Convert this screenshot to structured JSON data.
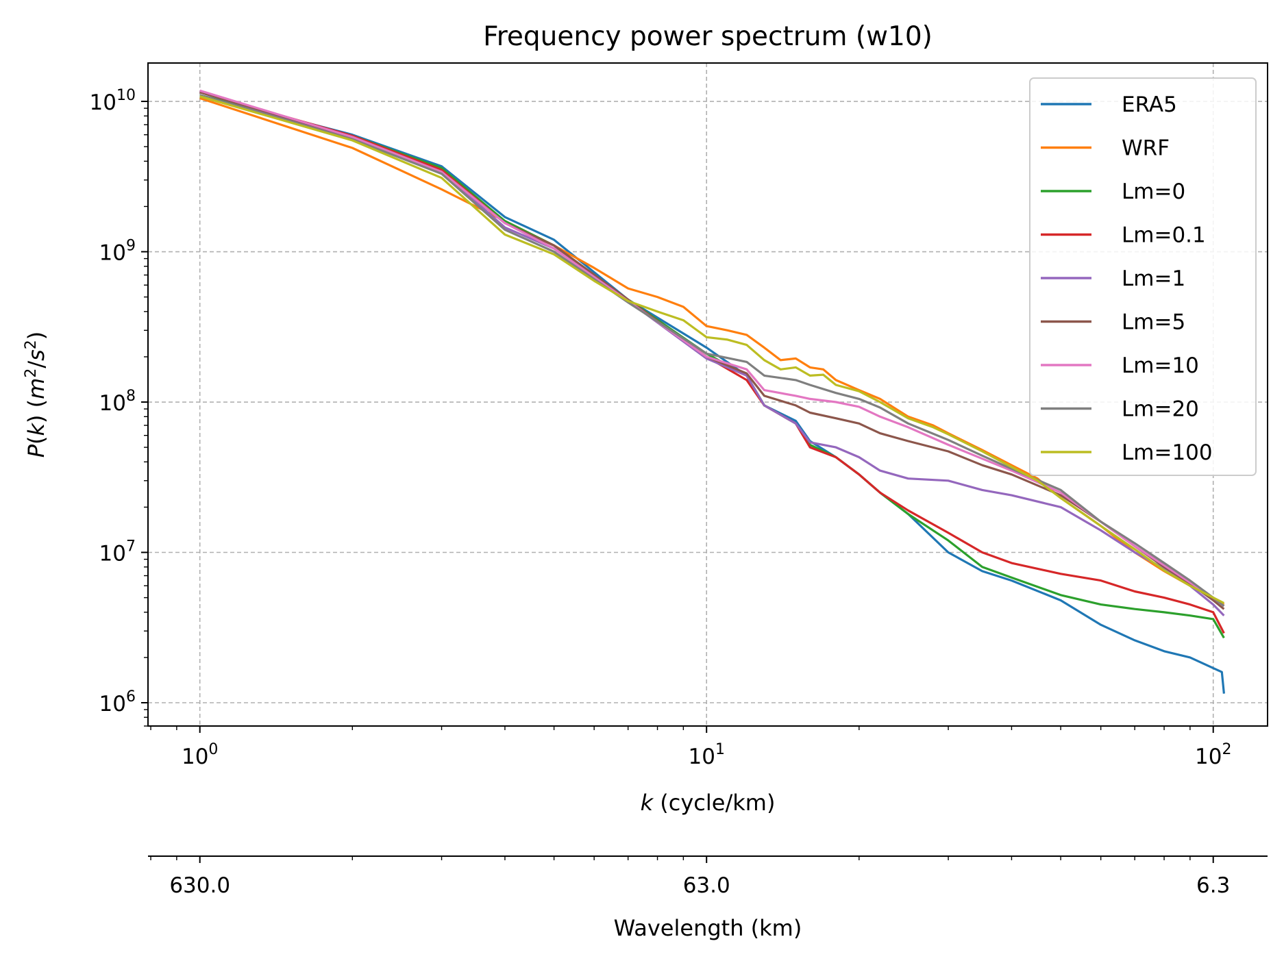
{
  "chart_data": {
    "type": "line",
    "title": "Frequency power spectrum (w10)",
    "xlabel": "k (cycle/km)",
    "ylabel": "P(k) (m²/s²)",
    "secondary_xlabel": "Wavelength (km)",
    "x_scale": "log",
    "y_scale": "log",
    "xlim": [
      0.79,
      128
    ],
    "ylim": [
      700000,
      18000000000
    ],
    "x_ticks": [
      {
        "value": 1,
        "base": "10",
        "exp": "0"
      },
      {
        "value": 10,
        "base": "10",
        "exp": "1"
      },
      {
        "value": 100,
        "base": "10",
        "exp": "2"
      }
    ],
    "y_ticks": [
      {
        "value": 1000000,
        "base": "10",
        "exp": "6"
      },
      {
        "value": 10000000,
        "base": "10",
        "exp": "7"
      },
      {
        "value": 100000000,
        "base": "10",
        "exp": "8"
      },
      {
        "value": 1000000000,
        "base": "10",
        "exp": "9"
      },
      {
        "value": 10000000000,
        "base": "10",
        "exp": "10"
      }
    ],
    "secondary_x_ticks": [
      {
        "k": 1,
        "label": "630.0"
      },
      {
        "k": 10,
        "label": "63.0"
      },
      {
        "k": 100,
        "label": "6.3"
      }
    ],
    "grid": true,
    "legend_position": "top-right",
    "series": [
      {
        "name": "ERA5",
        "color": "#1f77b4",
        "x": [
          1,
          2,
          3,
          4,
          5,
          7,
          10,
          12,
          13,
          15,
          16,
          18,
          20,
          22,
          25,
          30,
          35,
          40,
          50,
          60,
          70,
          80,
          90,
          100,
          104,
          105
        ],
        "y": [
          11000000000,
          6000000000,
          3700000000,
          1700000000,
          1200000000,
          480000000,
          230000000,
          150000000,
          95000000,
          75000000,
          55000000,
          43000000,
          33000000,
          25000000,
          18000000,
          10000000,
          7500000,
          6500000,
          4800000,
          3300000,
          2600000,
          2200000,
          2000000,
          1700000,
          1600000,
          1150000
        ]
      },
      {
        "name": "WRF",
        "color": "#ff7f0e",
        "x": [
          1,
          2,
          3,
          4,
          5,
          6,
          7,
          8,
          9,
          10,
          11,
          12,
          13,
          14,
          15,
          16,
          17,
          18,
          20,
          22,
          25,
          28,
          30,
          35,
          40,
          45,
          50,
          60,
          70,
          80,
          90,
          100,
          105
        ],
        "y": [
          10500000000,
          4900000000,
          2600000000,
          1600000000,
          1100000000,
          780000000,
          570000000,
          500000000,
          430000000,
          320000000,
          300000000,
          280000000,
          230000000,
          190000000,
          195000000,
          170000000,
          165000000,
          140000000,
          120000000,
          105000000,
          80000000,
          70000000,
          62000000,
          48000000,
          38000000,
          31000000,
          23000000,
          15000000,
          10000000,
          7500000,
          6000000,
          5000000,
          4500000
        ]
      },
      {
        "name": "Lm=0",
        "color": "#2ca02c",
        "x": [
          1,
          2,
          3,
          4,
          5,
          7,
          10,
          12,
          13,
          15,
          16,
          18,
          20,
          22,
          25,
          30,
          35,
          40,
          50,
          60,
          70,
          80,
          90,
          100,
          105
        ],
        "y": [
          11000000000,
          5900000000,
          3600000000,
          1600000000,
          1100000000,
          480000000,
          210000000,
          150000000,
          95000000,
          72000000,
          52000000,
          43000000,
          33000000,
          25000000,
          18000000,
          12000000,
          8000000,
          6800000,
          5200000,
          4500000,
          4200000,
          4000000,
          3800000,
          3600000,
          2700000
        ]
      },
      {
        "name": "Lm=0.1",
        "color": "#d62728",
        "x": [
          1,
          2,
          3,
          4,
          5,
          7,
          10,
          12,
          13,
          15,
          16,
          18,
          20,
          22,
          25,
          30,
          35,
          40,
          50,
          60,
          70,
          80,
          90,
          100,
          105
        ],
        "y": [
          11500000000,
          5900000000,
          3500000000,
          1550000000,
          1100000000,
          480000000,
          200000000,
          140000000,
          95000000,
          72000000,
          50000000,
          43000000,
          33000000,
          25000000,
          19000000,
          13500000,
          10000000,
          8500000,
          7200000,
          6500000,
          5500000,
          5000000,
          4500000,
          4000000,
          2900000
        ]
      },
      {
        "name": "Lm=1",
        "color": "#9467bd",
        "x": [
          1,
          2,
          3,
          4,
          5,
          7,
          10,
          12,
          13,
          15,
          16,
          18,
          20,
          22,
          25,
          30,
          35,
          40,
          50,
          60,
          70,
          80,
          90,
          100,
          105
        ],
        "y": [
          11500000000,
          5700000000,
          3400000000,
          1450000000,
          1050000000,
          470000000,
          195000000,
          150000000,
          95000000,
          72000000,
          54000000,
          50000000,
          43000000,
          35000000,
          31000000,
          30000000,
          26000000,
          24000000,
          20000000,
          14000000,
          10000000,
          7800000,
          6000000,
          4500000,
          3800000
        ]
      },
      {
        "name": "Lm=5",
        "color": "#8c564b",
        "x": [
          1,
          2,
          3,
          4,
          5,
          7,
          10,
          12,
          13,
          15,
          16,
          18,
          20,
          22,
          25,
          30,
          35,
          40,
          50,
          60,
          70,
          80,
          90,
          100,
          105
        ],
        "y": [
          11500000000,
          5800000000,
          3400000000,
          1550000000,
          1100000000,
          480000000,
          200000000,
          155000000,
          110000000,
          95000000,
          85000000,
          78000000,
          72000000,
          62000000,
          55000000,
          47000000,
          38000000,
          33000000,
          24000000,
          16000000,
          11000000,
          8000000,
          6200000,
          4800000,
          4200000
        ]
      },
      {
        "name": "Lm=10",
        "color": "#e377c2",
        "x": [
          1,
          2,
          3,
          4,
          5,
          7,
          10,
          12,
          13,
          15,
          16,
          18,
          20,
          22,
          25,
          30,
          35,
          40,
          50,
          60,
          70,
          80,
          90,
          100,
          105
        ],
        "y": [
          11800000000,
          5800000000,
          3400000000,
          1550000000,
          1050000000,
          470000000,
          200000000,
          165000000,
          120000000,
          110000000,
          105000000,
          100000000,
          93000000,
          80000000,
          68000000,
          52000000,
          42000000,
          35000000,
          25000000,
          16000000,
          11000000,
          8200000,
          6300000,
          5000000,
          4400000
        ]
      },
      {
        "name": "Lm=20",
        "color": "#7f7f7f",
        "x": [
          1,
          2,
          3,
          4,
          5,
          7,
          10,
          12,
          13,
          15,
          16,
          18,
          20,
          22,
          25,
          30,
          35,
          40,
          50,
          60,
          70,
          80,
          90,
          100,
          105
        ],
        "y": [
          11000000000,
          5600000000,
          3300000000,
          1400000000,
          1000000000,
          460000000,
          210000000,
          185000000,
          150000000,
          140000000,
          130000000,
          115000000,
          105000000,
          92000000,
          72000000,
          56000000,
          44000000,
          36000000,
          26000000,
          16000000,
          11500000,
          8500000,
          6500000,
          5000000,
          4400000
        ]
      },
      {
        "name": "Lm=100",
        "color": "#bcbd22",
        "x": [
          1,
          2,
          3,
          4,
          5,
          6,
          7,
          8,
          9,
          10,
          11,
          12,
          13,
          14,
          15,
          16,
          17,
          18,
          20,
          22,
          25,
          28,
          30,
          35,
          40,
          45,
          50,
          60,
          70,
          80,
          90,
          100,
          105
        ],
        "y": [
          10800000000,
          5500000000,
          3100000000,
          1300000000,
          960000000,
          640000000,
          470000000,
          400000000,
          350000000,
          270000000,
          260000000,
          240000000,
          190000000,
          165000000,
          170000000,
          150000000,
          152000000,
          130000000,
          118000000,
          100000000,
          78000000,
          68000000,
          61000000,
          47000000,
          37000000,
          30000000,
          23000000,
          15000000,
          10500000,
          7600000,
          6000000,
          5000000,
          4600000
        ]
      }
    ]
  }
}
